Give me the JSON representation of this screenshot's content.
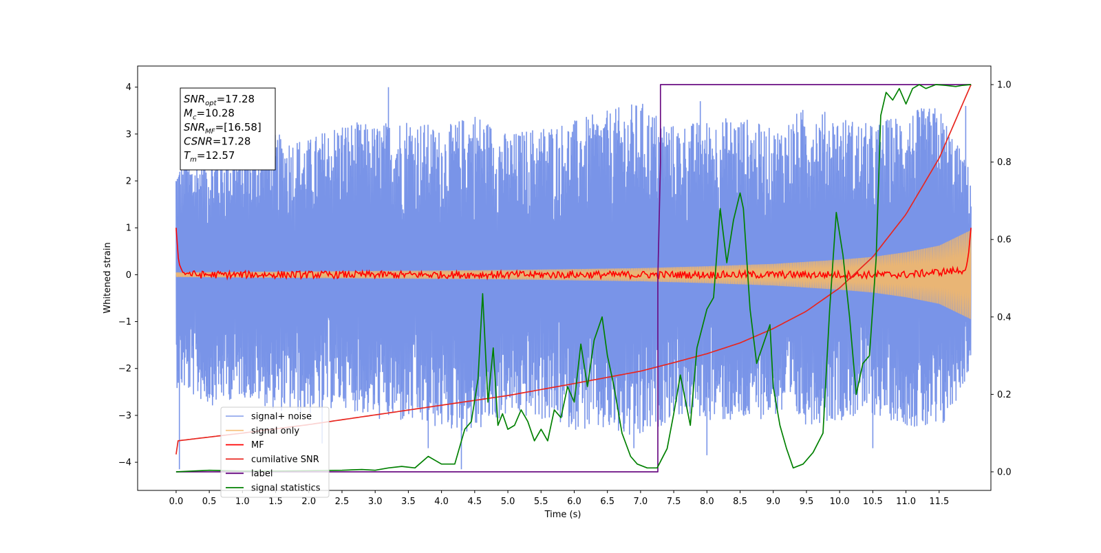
{
  "chart_data": {
    "type": "line",
    "xlabel": "Time (s)",
    "ylabel": "Whitened strain",
    "xlim": [
      -0.58,
      12.28
    ],
    "ylim_left": [
      -4.6,
      4.45
    ],
    "ylim_right": [
      -0.048,
      1.048
    ],
    "x_ticks": [
      0.0,
      0.5,
      1.0,
      1.5,
      2.0,
      2.5,
      3.0,
      3.5,
      4.0,
      4.5,
      5.0,
      5.5,
      6.0,
      6.5,
      7.0,
      7.5,
      8.0,
      8.5,
      9.0,
      9.5,
      10.0,
      10.5,
      11.0,
      11.5
    ],
    "x_tick_labels": [
      "0.0",
      "0.5",
      "1.0",
      "1.5",
      "2.0",
      "2.5",
      "3.0",
      "3.5",
      "4.0",
      "4.5",
      "5.0",
      "5.5",
      "6.0",
      "6.5",
      "7.0",
      "7.5",
      "8.0",
      "8.5",
      "9.0",
      "9.5",
      "10.0",
      "10.5",
      "11.0",
      "11.5"
    ],
    "y_ticks_left": [
      -4,
      -3,
      -2,
      -1,
      0,
      1,
      2,
      3,
      4
    ],
    "y_tick_labels_left": [
      "−4",
      "−3",
      "−2",
      "−1",
      "0",
      "1",
      "2",
      "3",
      "4"
    ],
    "y_ticks_right": [
      0.0,
      0.2,
      0.4,
      0.6,
      0.8,
      1.0
    ],
    "y_tick_labels_right": [
      "0.0",
      "0.2",
      "0.4",
      "0.6",
      "0.8",
      "1.0"
    ],
    "legend_location": "lower-left",
    "annotation": {
      "lines": [
        {
          "base": "SNR",
          "sub": "opt",
          "value": "=17.28"
        },
        {
          "base": "M",
          "sub": "c",
          "value": "=10.28"
        },
        {
          "base": "SNR",
          "sub": "MF",
          "value": "=[16.58]"
        },
        {
          "base": "CSNR",
          "sub": "",
          "value": "=17.28"
        },
        {
          "base": "T",
          "sub": "m",
          "value": "=12.57"
        }
      ]
    },
    "series": [
      {
        "name": "signal+ noise",
        "color": "#7994e8",
        "axis": "left",
        "description_range": {
          "x": [
            0,
            11.98
          ],
          "y_min": -4.15,
          "y_max": 4.0
        },
        "envelope_x": [
          0,
          0.5,
          1.0,
          1.5,
          2.0,
          2.5,
          3.0,
          3.5,
          4.0,
          4.5,
          5.0,
          5.5,
          6.0,
          6.5,
          7.0,
          7.5,
          8.0,
          8.5,
          9.0,
          9.5,
          10.0,
          10.5,
          11.0,
          11.5,
          11.98
        ],
        "envelope_top": [
          2.4,
          2.6,
          2.8,
          3.0,
          2.9,
          3.3,
          3.2,
          3.4,
          3.1,
          3.5,
          3.0,
          3.2,
          3.3,
          3.5,
          3.7,
          3.2,
          3.3,
          3.4,
          3.1,
          3.6,
          3.4,
          3.2,
          3.5,
          3.6,
          2.2
        ],
        "envelope_bottom": [
          -2.4,
          -2.8,
          -2.6,
          -2.9,
          -3.0,
          -2.8,
          -3.1,
          -3.2,
          -3.3,
          -3.4,
          -3.0,
          -3.1,
          -3.3,
          -3.4,
          -3.6,
          -3.0,
          -3.1,
          -3.2,
          -3.0,
          -3.2,
          -3.1,
          -3.0,
          -3.2,
          -3.5,
          -2.0
        ],
        "spikes": [
          [
            0.05,
            -4.15
          ],
          [
            0.15,
            3.9
          ],
          [
            4.3,
            -4.15
          ],
          [
            3.2,
            4.0
          ],
          [
            3.8,
            -3.7
          ],
          [
            8.0,
            -3.85
          ],
          [
            10.5,
            -3.7
          ],
          [
            11.9,
            3.6
          ],
          [
            6.9,
            -3.7
          ],
          [
            7.9,
            3.7
          ],
          [
            1.4,
            3.5
          ],
          [
            2.2,
            -3.6
          ]
        ]
      },
      {
        "name": "signal only",
        "color": "#f5b868",
        "axis": "left",
        "amplitude_x": [
          0,
          1,
          2,
          3,
          4,
          5,
          6,
          7,
          8,
          9,
          10,
          10.5,
          11,
          11.5,
          11.98
        ],
        "amplitude": [
          0.05,
          0.06,
          0.07,
          0.08,
          0.09,
          0.1,
          0.12,
          0.14,
          0.18,
          0.23,
          0.32,
          0.38,
          0.48,
          0.62,
          0.95
        ]
      },
      {
        "name": "MF",
        "color": "#ff0000",
        "axis": "left",
        "x": [
          0,
          0.02,
          0.04,
          0.1,
          0.3,
          1.0,
          2.0,
          3.0,
          4.0,
          5.0,
          6.0,
          7.0,
          8.0,
          9.0,
          10.0,
          11.0,
          11.9,
          11.94,
          11.98
        ],
        "y": [
          1.0,
          0.6,
          0.25,
          0.05,
          0.0,
          0.0,
          0.0,
          0.0,
          0.0,
          0.0,
          0.0,
          0.0,
          0.0,
          0.0,
          0.0,
          0.0,
          0.1,
          0.4,
          1.0
        ]
      },
      {
        "name": "cumilative SNR",
        "color": "#e8261f",
        "axis": "right",
        "x": [
          0,
          0.02,
          1.0,
          2.0,
          3.0,
          4.0,
          5.0,
          6.0,
          7.0,
          7.5,
          8.0,
          8.5,
          9.0,
          9.5,
          10.0,
          10.5,
          11.0,
          11.5,
          11.98
        ],
        "y": [
          0.045,
          0.08,
          0.1,
          0.122,
          0.147,
          0.172,
          0.197,
          0.228,
          0.26,
          0.282,
          0.305,
          0.333,
          0.37,
          0.415,
          0.475,
          0.555,
          0.665,
          0.81,
          1.0
        ]
      },
      {
        "name": "label",
        "color": "#6a0d83",
        "axis": "right",
        "x": [
          0,
          7.26,
          7.26,
          7.3,
          7.3,
          11.98
        ],
        "y": [
          0.0,
          0.0,
          0.5,
          0.8,
          1.0,
          1.0
        ]
      },
      {
        "name": "signal statistics",
        "color": "#008000",
        "axis": "right",
        "x": [
          0,
          0.5,
          1,
          1.5,
          2,
          2.5,
          2.8,
          3.0,
          3.2,
          3.4,
          3.6,
          3.8,
          4.0,
          4.2,
          4.35,
          4.45,
          4.55,
          4.62,
          4.7,
          4.78,
          4.85,
          4.92,
          5.0,
          5.1,
          5.2,
          5.3,
          5.4,
          5.5,
          5.6,
          5.7,
          5.8,
          5.9,
          6.0,
          6.1,
          6.2,
          6.3,
          6.42,
          6.5,
          6.6,
          6.72,
          6.85,
          6.95,
          7.1,
          7.25,
          7.4,
          7.5,
          7.6,
          7.75,
          7.85,
          8.0,
          8.1,
          8.2,
          8.3,
          8.4,
          8.5,
          8.55,
          8.65,
          8.75,
          8.85,
          8.95,
          9.0,
          9.1,
          9.2,
          9.3,
          9.45,
          9.6,
          9.75,
          9.85,
          9.95,
          10.05,
          10.15,
          10.25,
          10.35,
          10.45,
          10.55,
          10.62,
          10.7,
          10.8,
          10.9,
          11.0,
          11.1,
          11.2,
          11.3,
          11.45,
          11.6,
          11.75,
          11.85,
          11.98
        ],
        "y": [
          0.0,
          0.004,
          0.002,
          0.002,
          0.003,
          0.004,
          0.006,
          0.004,
          0.01,
          0.014,
          0.01,
          0.04,
          0.02,
          0.02,
          0.11,
          0.13,
          0.24,
          0.46,
          0.18,
          0.32,
          0.12,
          0.15,
          0.11,
          0.12,
          0.16,
          0.13,
          0.08,
          0.11,
          0.08,
          0.16,
          0.14,
          0.22,
          0.18,
          0.33,
          0.22,
          0.34,
          0.4,
          0.3,
          0.22,
          0.1,
          0.04,
          0.02,
          0.01,
          0.01,
          0.06,
          0.15,
          0.25,
          0.12,
          0.32,
          0.42,
          0.45,
          0.68,
          0.54,
          0.65,
          0.72,
          0.68,
          0.42,
          0.28,
          0.33,
          0.38,
          0.22,
          0.12,
          0.06,
          0.01,
          0.02,
          0.05,
          0.1,
          0.42,
          0.67,
          0.56,
          0.4,
          0.2,
          0.28,
          0.3,
          0.55,
          0.92,
          0.98,
          0.96,
          0.99,
          0.95,
          0.99,
          1.0,
          0.99,
          1.0,
          0.998,
          0.995,
          0.998,
          1.0
        ]
      }
    ]
  }
}
